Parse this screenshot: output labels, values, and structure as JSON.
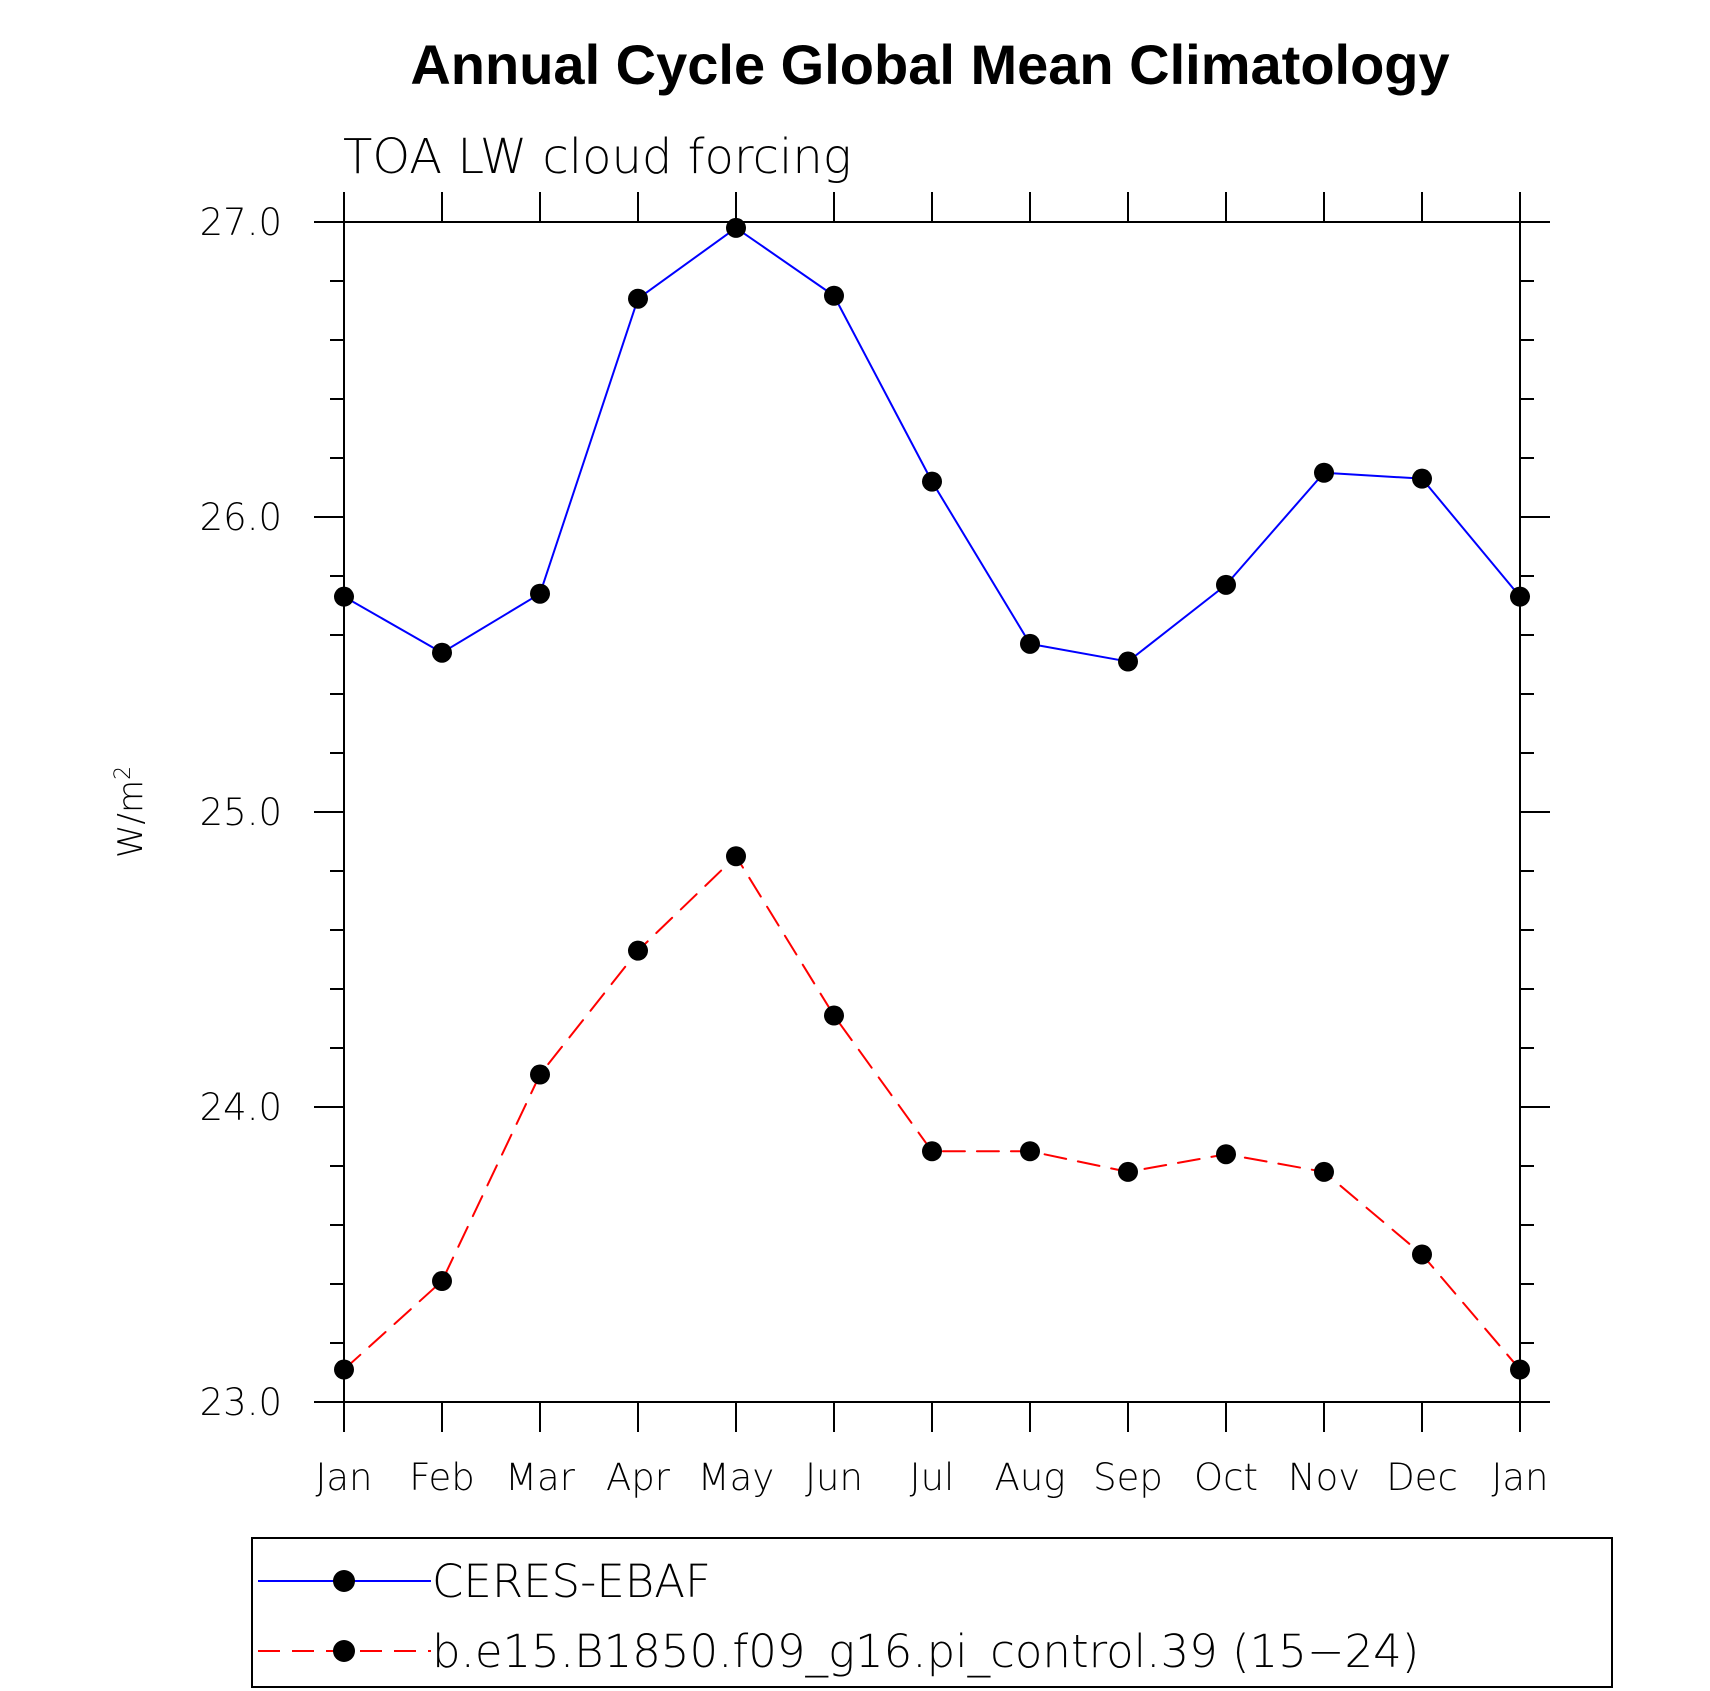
{
  "chart_data": {
    "type": "line",
    "title": "Annual Cycle Global Mean Climatology",
    "subtitle": "TOA LW cloud forcing",
    "ylabel": "W/m",
    "ylabel_superscript": "2",
    "categories": [
      "Jan",
      "Feb",
      "Mar",
      "Apr",
      "May",
      "Jun",
      "Jul",
      "Aug",
      "Sep",
      "Oct",
      "Nov",
      "Dec",
      "Jan"
    ],
    "ylim": [
      23.0,
      27.0
    ],
    "yticks": [
      23.0,
      24.0,
      25.0,
      26.0,
      27.0
    ],
    "ytick_labels": [
      "23.0",
      "24.0",
      "25.0",
      "26.0",
      "27.0"
    ],
    "minor_ytick_step": 0.2,
    "grid": false,
    "legend_position": "bottom",
    "series": [
      {
        "name": "CERES-EBAF",
        "color": "#0000ff",
        "line_style": "solid",
        "marker": "circle",
        "values": [
          25.73,
          25.54,
          25.74,
          26.74,
          26.98,
          26.75,
          26.12,
          25.57,
          25.51,
          25.77,
          26.15,
          26.13,
          25.73
        ]
      },
      {
        "name": "b.e15.B1850.f09_g16.pi_control.39 (15−24)",
        "color": "#ff0000",
        "line_style": "dashed",
        "marker": "circle",
        "values": [
          23.11,
          23.41,
          24.11,
          24.53,
          24.85,
          24.31,
          23.85,
          23.85,
          23.78,
          23.84,
          23.78,
          23.5,
          23.11
        ]
      }
    ]
  }
}
